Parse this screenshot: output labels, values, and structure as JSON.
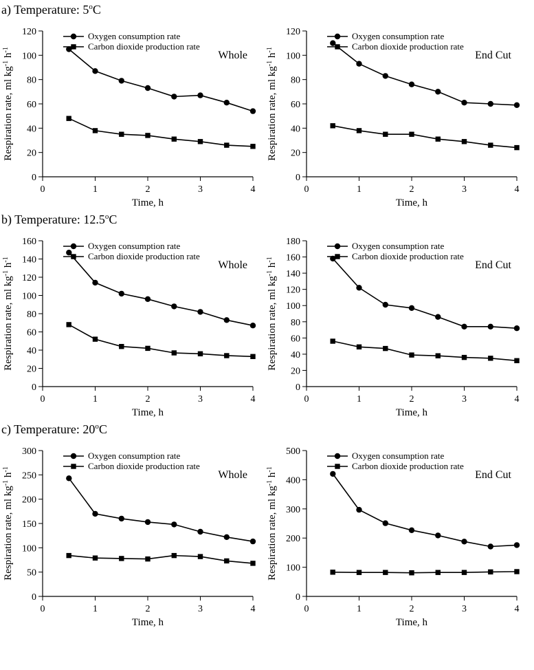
{
  "font_family": "Times New Roman",
  "legend": {
    "series1": "Oxygen consumption rate",
    "series2": "Carbon dioxide production rate"
  },
  "axis": {
    "x_label": "Time, h",
    "y_label_prefix": "Respiration rate, ml kg",
    "y_label_sup1": "-1",
    "y_label_mid": " h",
    "y_label_sup2": "-1",
    "x_ticks": [
      0,
      1,
      2,
      3,
      4
    ],
    "label_fontsize": 15,
    "tick_fontsize": 14
  },
  "marker": {
    "circle_r": 4.2,
    "square_s": 7.4,
    "line_width": 1.6,
    "color": "#000000"
  },
  "sections": [
    {
      "title": "a) Temperature: 5°C",
      "charts": [
        {
          "label": "Whole",
          "ylim": [
            0,
            120
          ],
          "ystep": 20,
          "x": [
            0.5,
            1,
            1.5,
            2,
            2.5,
            3,
            3.5,
            4
          ],
          "o2": [
            105,
            87,
            79,
            73,
            66,
            67,
            61,
            54
          ],
          "co2": [
            48,
            38,
            35,
            34,
            31,
            29,
            26,
            25
          ]
        },
        {
          "label": "End Cut",
          "ylim": [
            0,
            120
          ],
          "ystep": 20,
          "x": [
            0.5,
            1,
            1.5,
            2,
            2.5,
            3,
            3.5,
            4
          ],
          "o2": [
            110,
            93,
            83,
            76,
            70,
            61,
            60,
            59
          ],
          "co2": [
            42,
            38,
            35,
            35,
            31,
            29,
            26,
            24
          ]
        }
      ]
    },
    {
      "title": "b) Temperature: 12.5°C",
      "charts": [
        {
          "label": "Whole",
          "ylim": [
            0,
            160
          ],
          "ystep": 20,
          "x": [
            0.5,
            1,
            1.5,
            2,
            2.5,
            3,
            3.5,
            4
          ],
          "o2": [
            147,
            114,
            102,
            96,
            88,
            82,
            73,
            67
          ],
          "co2": [
            68,
            52,
            44,
            42,
            37,
            36,
            34,
            33
          ]
        },
        {
          "label": "End Cut",
          "ylim": [
            0,
            180
          ],
          "ystep": 20,
          "x": [
            0.5,
            1,
            1.5,
            2,
            2.5,
            3,
            3.5,
            4
          ],
          "o2": [
            158,
            122,
            101,
            97,
            86,
            74,
            74,
            72
          ],
          "co2": [
            56,
            49,
            47,
            39,
            38,
            36,
            35,
            32
          ]
        }
      ]
    },
    {
      "title": "c) Temperature: 20°C",
      "charts": [
        {
          "label": "Whole",
          "ylim": [
            0,
            300
          ],
          "ystep": 50,
          "x": [
            0.5,
            1,
            1.5,
            2,
            2.5,
            3,
            3.5,
            4
          ],
          "o2": [
            243,
            170,
            160,
            153,
            148,
            133,
            122,
            113
          ],
          "co2": [
            84,
            79,
            78,
            77,
            84,
            82,
            73,
            68
          ]
        },
        {
          "label": "End Cut",
          "ylim": [
            0,
            500
          ],
          "ystep": 100,
          "x": [
            0.5,
            1,
            1.5,
            2,
            2.5,
            3,
            3.5,
            4
          ],
          "o2": [
            420,
            297,
            251,
            227,
            209,
            188,
            171,
            176
          ],
          "co2": [
            83,
            82,
            82,
            81,
            82,
            82,
            84,
            85
          ]
        }
      ]
    }
  ]
}
